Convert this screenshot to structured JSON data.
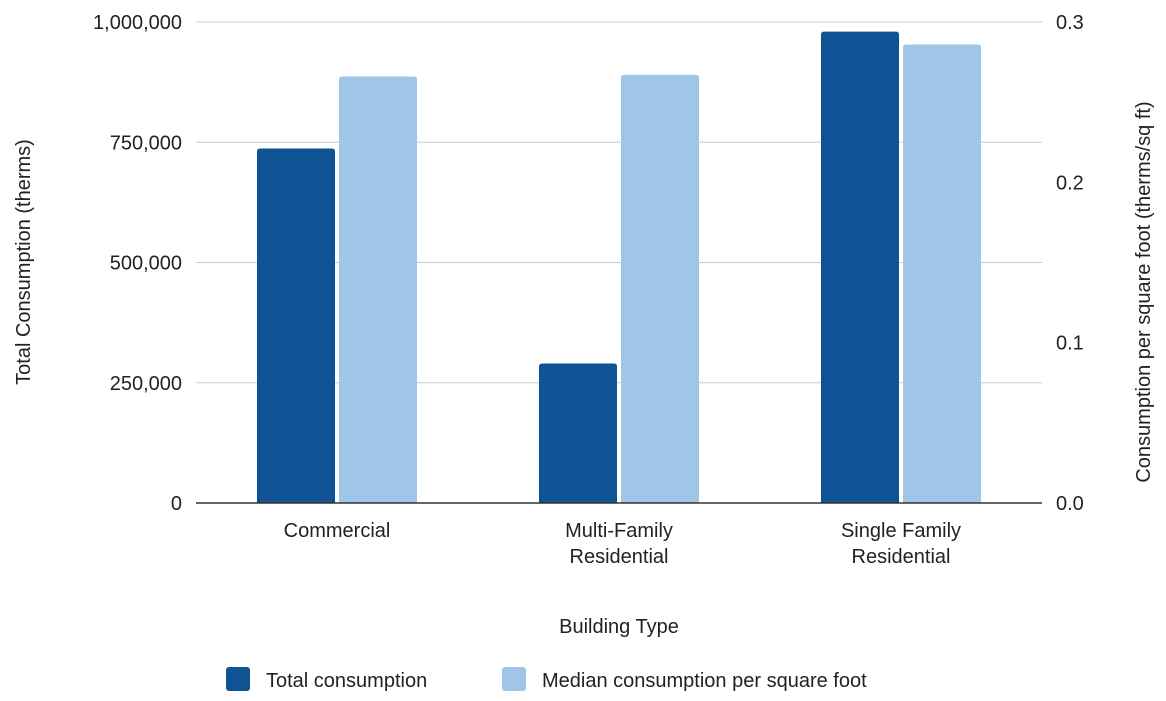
{
  "chart_data": {
    "type": "bar",
    "title": "",
    "xlabel": "Building Type",
    "ylabel_left": "Total Consumption (therms)",
    "ylabel_right": "Consumption per square foot (therms/sq ft)",
    "categories": [
      [
        "Commercial"
      ],
      [
        "Multi-Family",
        "Residential"
      ],
      [
        "Single Family",
        "Residential"
      ]
    ],
    "y_left": {
      "min": 0,
      "max": 1000000,
      "ticks": [
        0,
        250000,
        500000,
        750000,
        1000000
      ],
      "tick_labels": [
        "0",
        "250,000",
        "500,000",
        "750,000",
        "1,000,000"
      ]
    },
    "y_right": {
      "min": 0,
      "max": 0.3,
      "ticks": [
        0,
        0.1,
        0.2,
        0.3
      ],
      "tick_labels": [
        "0.0",
        "0.1",
        "0.2",
        "0.3"
      ]
    },
    "series": [
      {
        "name": "Total consumption",
        "axis": "left",
        "color": "#0f5394",
        "values": [
          737000,
          290000,
          980000
        ]
      },
      {
        "name": "Median consumption per square foot",
        "axis": "right",
        "color": "#9fc5e8",
        "values": [
          0.266,
          0.267,
          0.286
        ]
      }
    ],
    "grid": true,
    "legend_position": "bottom"
  }
}
